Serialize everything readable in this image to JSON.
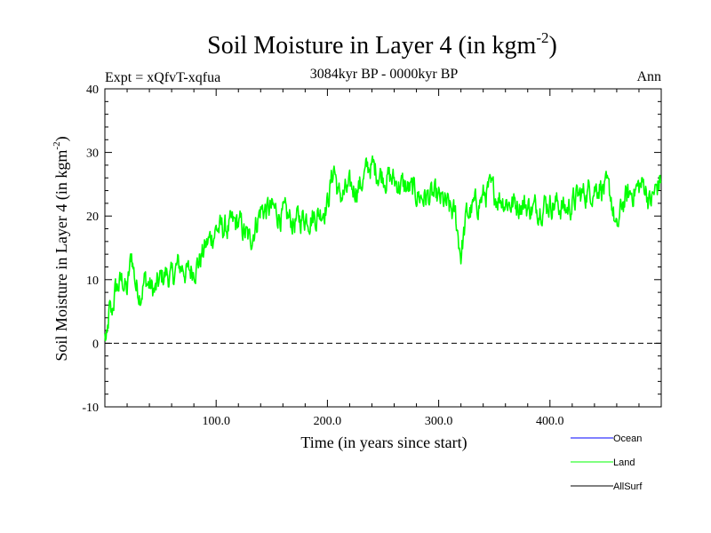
{
  "chart_data": {
    "type": "line",
    "title": "Soil Moisture in Layer 4 (in kgm",
    "title_sup": "-2",
    "title_end": ")",
    "subtitle": "3084kyr BP - 0000kyr BP",
    "expt_label": "Expt = xQfvT-xqfua",
    "season_label": "Ann",
    "xlabel": "Time (in years since start)",
    "ylabel": "Soil Moisture in Layer 4 (in kgm",
    "ylabel_sup": "-2",
    "ylabel_end": ")",
    "xlim": [
      0,
      500
    ],
    "ylim": [
      -10,
      40
    ],
    "x_ticks": [
      100,
      200,
      300,
      400
    ],
    "x_tick_labels": [
      "100.0",
      "200.0",
      "300.0",
      "400.0"
    ],
    "y_ticks": [
      -10,
      0,
      10,
      20,
      30,
      40
    ],
    "y_tick_labels": [
      "-10",
      "0",
      "10",
      "20",
      "30",
      "40"
    ],
    "reference_line": 0,
    "land_color": "#00ff00",
    "ocean_color": "#0000ff",
    "allsurf_color": "#000000",
    "legend": [
      {
        "name": "Ocean",
        "color": "#0000ff"
      },
      {
        "name": "Land",
        "color": "#00ff00"
      },
      {
        "name": "AllSurf",
        "color": "#000000"
      }
    ],
    "series": [
      {
        "name": "Land",
        "anchors_x": [
          0,
          2,
          4,
          6,
          9,
          12,
          16,
          20,
          24,
          28,
          32,
          36,
          40,
          45,
          50,
          55,
          60,
          65,
          70,
          75,
          80,
          85,
          90,
          100,
          110,
          120,
          130,
          140,
          150,
          160,
          170,
          180,
          190,
          200,
          206,
          210,
          220,
          230,
          238,
          245,
          255,
          265,
          275,
          285,
          295,
          305,
          315,
          320,
          325,
          335,
          345,
          355,
          365,
          375,
          385,
          395,
          405,
          415,
          425,
          435,
          445,
          455,
          460,
          465,
          475,
          485,
          490,
          495,
          500
        ],
        "anchors_y": [
          1,
          0,
          5,
          4,
          8,
          9,
          10,
          8,
          14,
          9,
          8,
          10,
          9,
          8,
          10,
          11,
          10,
          12,
          12,
          11,
          12,
          13,
          15,
          18,
          18,
          19,
          16,
          21,
          21,
          20,
          19,
          20,
          20,
          22,
          28,
          23,
          24,
          25,
          28,
          27,
          26,
          25,
          24,
          23,
          23,
          22,
          20,
          14,
          20,
          22,
          24,
          23,
          22,
          22,
          21,
          22,
          22,
          21,
          23,
          24,
          25,
          23,
          17,
          22,
          24,
          25,
          22,
          24,
          26
        ]
      }
    ]
  }
}
